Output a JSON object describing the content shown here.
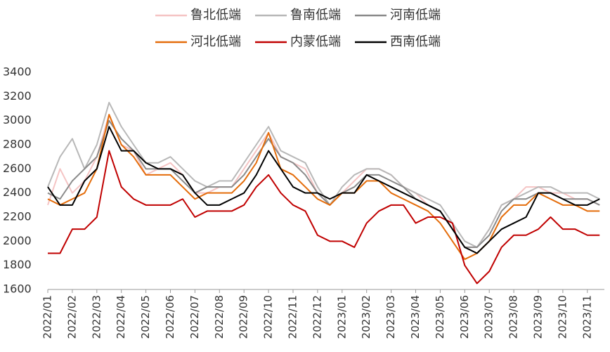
{
  "chart_data": {
    "type": "line",
    "categories": [
      "2022/01",
      null,
      "2022/02",
      null,
      "2022/03",
      null,
      "2022/04",
      null,
      "2022/05",
      null,
      "2022/06",
      null,
      "2022/07",
      null,
      "2022/08",
      null,
      "2022/09",
      null,
      "2022/10",
      null,
      "2022/11",
      null,
      "2022/12",
      null,
      "2023/01",
      null,
      "2023/02",
      null,
      "2023/03",
      null,
      "2023/04",
      null,
      "2023/05",
      null,
      "2023/06",
      null,
      "2023/07",
      null,
      "2023/08",
      null,
      "2023/09",
      null,
      "2023/10",
      null,
      "2023/11",
      null
    ],
    "series": [
      {
        "name": "鲁北低端",
        "color": "#f5c4c4",
        "values": [
          2300,
          2600,
          2400,
          2500,
          2700,
          3050,
          2800,
          2750,
          2550,
          2600,
          2650,
          2550,
          2400,
          2400,
          2450,
          2450,
          2600,
          2750,
          2900,
          2700,
          2650,
          2600,
          2400,
          2300,
          2400,
          2500,
          2600,
          2600,
          2550,
          2450,
          2400,
          2300,
          2250,
          2100,
          1950,
          1950,
          2100,
          2300,
          2350,
          2450,
          2450,
          2400,
          2400,
          2350,
          2350,
          2300
        ]
      },
      {
        "name": "鲁南低端",
        "color": "#b8b8b8",
        "values": [
          2450,
          2700,
          2850,
          2600,
          2800,
          3150,
          2950,
          2800,
          2650,
          2650,
          2700,
          2600,
          2500,
          2450,
          2500,
          2500,
          2650,
          2800,
          2950,
          2750,
          2700,
          2650,
          2450,
          2300,
          2450,
          2550,
          2600,
          2600,
          2550,
          2450,
          2400,
          2350,
          2300,
          2150,
          2000,
          1950,
          2100,
          2300,
          2350,
          2400,
          2450,
          2450,
          2400,
          2400,
          2400,
          2350
        ]
      },
      {
        "name": "河南低端",
        "color": "#8a8a8a",
        "values": [
          2400,
          2350,
          2500,
          2600,
          2700,
          3000,
          2850,
          2750,
          2600,
          2600,
          2600,
          2500,
          2400,
          2450,
          2450,
          2450,
          2550,
          2700,
          2850,
          2700,
          2650,
          2550,
          2400,
          2300,
          2400,
          2450,
          2550,
          2550,
          2500,
          2450,
          2350,
          2300,
          2250,
          2100,
          1950,
          1950,
          2050,
          2250,
          2350,
          2350,
          2400,
          2400,
          2350,
          2350,
          2350,
          2300
        ]
      },
      {
        "name": "河北低端",
        "color": "#e46c0a",
        "values": [
          2350,
          2300,
          2350,
          2400,
          2600,
          3050,
          2800,
          2700,
          2550,
          2550,
          2550,
          2450,
          2350,
          2400,
          2400,
          2400,
          2500,
          2650,
          2900,
          2600,
          2550,
          2450,
          2350,
          2300,
          2400,
          2400,
          2500,
          2500,
          2400,
          2350,
          2300,
          2250,
          2150,
          2000,
          1850,
          1900,
          2000,
          2200,
          2300,
          2300,
          2400,
          2350,
          2300,
          2300,
          2250,
          2250
        ]
      },
      {
        "name": "内蒙低端",
        "color": "#c00000",
        "values": [
          1900,
          1900,
          2100,
          2100,
          2200,
          2750,
          2450,
          2350,
          2300,
          2300,
          2300,
          2350,
          2200,
          2250,
          2250,
          2250,
          2300,
          2450,
          2550,
          2400,
          2300,
          2250,
          2050,
          2000,
          2000,
          1950,
          2150,
          2250,
          2300,
          2300,
          2150,
          2200,
          2200,
          2150,
          1800,
          1650,
          1750,
          1950,
          2050,
          2050,
          2100,
          2200,
          2100,
          2100,
          2050,
          2050
        ]
      },
      {
        "name": "西南低端",
        "color": "#000000",
        "values": [
          2450,
          2300,
          2300,
          2500,
          2600,
          2950,
          2750,
          2750,
          2650,
          2600,
          2600,
          2550,
          2400,
          2300,
          2300,
          2350,
          2400,
          2550,
          2750,
          2600,
          2450,
          2400,
          2400,
          2350,
          2400,
          2400,
          2550,
          2500,
          2450,
          2400,
          2350,
          2300,
          2250,
          2100,
          1950,
          1900,
          2000,
          2100,
          2150,
          2200,
          2400,
          2400,
          2350,
          2300,
          2300,
          2350
        ]
      }
    ],
    "ylim": [
      1600,
      3400
    ],
    "yticks": [
      1600,
      1800,
      2000,
      2200,
      2400,
      2600,
      2800,
      3000,
      3200,
      3400
    ],
    "grid": false
  }
}
